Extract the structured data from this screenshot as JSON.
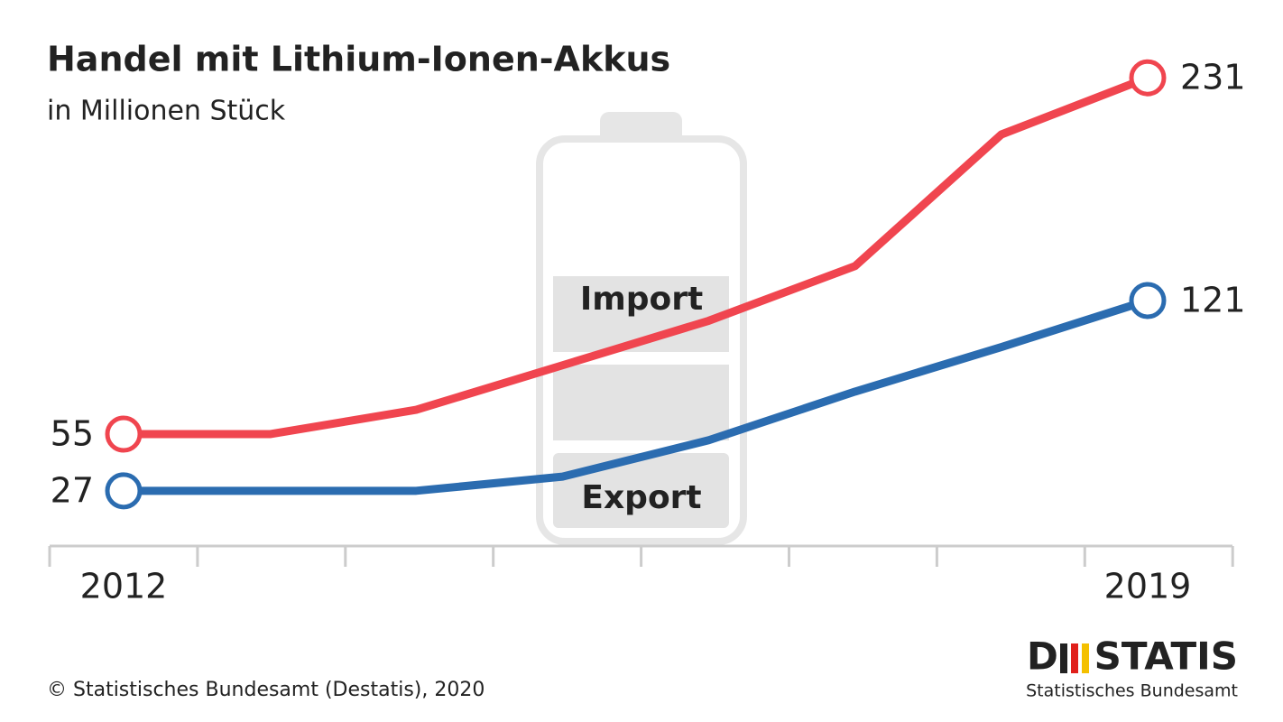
{
  "chart_data": {
    "type": "line",
    "title": "Handel mit Lithium-Ionen-Akkus",
    "subtitle": "in Millionen Stück",
    "categories": [
      "2012",
      null,
      null,
      null,
      null,
      null,
      null,
      "2019"
    ],
    "series": [
      {
        "name": "Import",
        "color": "#f0454f",
        "values": [
          55,
          55,
          67,
          89,
          111,
          138,
          203,
          231
        ]
      },
      {
        "name": "Export",
        "color": "#2b6cb0",
        "values": [
          27,
          27,
          27,
          34,
          52,
          76,
          98,
          121
        ]
      }
    ],
    "ylim": [
      0,
      240
    ],
    "source": "© Statistisches Bundesamt (Destatis), 2020",
    "logo": {
      "left": "D",
      "right": "STATIS",
      "subtitle": "Statistisches Bundesamt"
    }
  }
}
